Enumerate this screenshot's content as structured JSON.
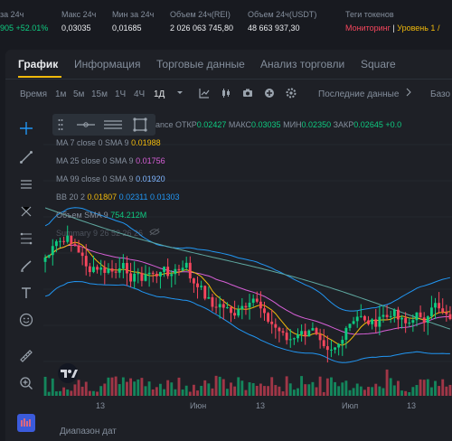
{
  "stats": [
    {
      "label": "за 24ч",
      "value": "905 +52.01%",
      "value_color": "green"
    },
    {
      "label": "Макс 24ч",
      "value": "0,03035"
    },
    {
      "label": "Мин за 24ч",
      "value": "0,01685"
    },
    {
      "label": "Объем 24ч(REI)",
      "value": "2 026 063 745,80"
    },
    {
      "label": "Объем 24ч(USDT)",
      "value": "48 663 937,30"
    },
    {
      "label": "Теги токенов",
      "tag1": "Мониторинг",
      "tag2": "Уровень 1 /"
    }
  ],
  "tabs": [
    "График",
    "Информация",
    "Торговые данные",
    "Анализ торговли",
    "Square"
  ],
  "toolbar": {
    "time_label": "Время",
    "intervals": [
      "1м",
      "5м",
      "15м",
      "1Ч",
      "4Ч",
      "1Д"
    ],
    "active_interval": "1Д",
    "last_data": "Последние данные",
    "base": "Базо"
  },
  "ohlc_line": {
    "name_tail": "ance",
    "open_label": "ОТКР",
    "open": "0.02427",
    "high_label": "МАКС",
    "high": "0.03035",
    "low_label": "МИН",
    "low": "0.02350",
    "close_label": "ЗАКР",
    "close": "0.02645",
    "change": "+0.0"
  },
  "indicators": {
    "ma7": {
      "label": "MA 7 close 0 SMA 9",
      "value": "0.01988",
      "color": "#f0b90b"
    },
    "ma25": {
      "label": "MA 25 close 0 SMA 9",
      "value": "0.01756",
      "color": "#d65fd6"
    },
    "ma99": {
      "label": "MA 99 close 0 SMA 9",
      "value": "0.01920",
      "color": "#7fb5ff"
    },
    "bb": {
      "label": "BB 20 2",
      "v1": "0.01807",
      "v2": "0.02311",
      "v3": "0.01303",
      "c1": "#f0b90b",
      "c2": "#2196f3",
      "c3": "#2196f3"
    },
    "volume": {
      "label": "Объем SMA 9",
      "value": "754.212M",
      "color": "#0ecb81"
    },
    "summary": {
      "label": "Summary 9 26 52 26 26"
    }
  },
  "x_axis_labels": [
    "13",
    "Июн",
    "13",
    "Июл",
    "13"
  ],
  "date_range": "Диапазон дат",
  "colors": {
    "up": "#0ecb81",
    "down": "#f6465d",
    "accent": "#f0b90b"
  }
}
